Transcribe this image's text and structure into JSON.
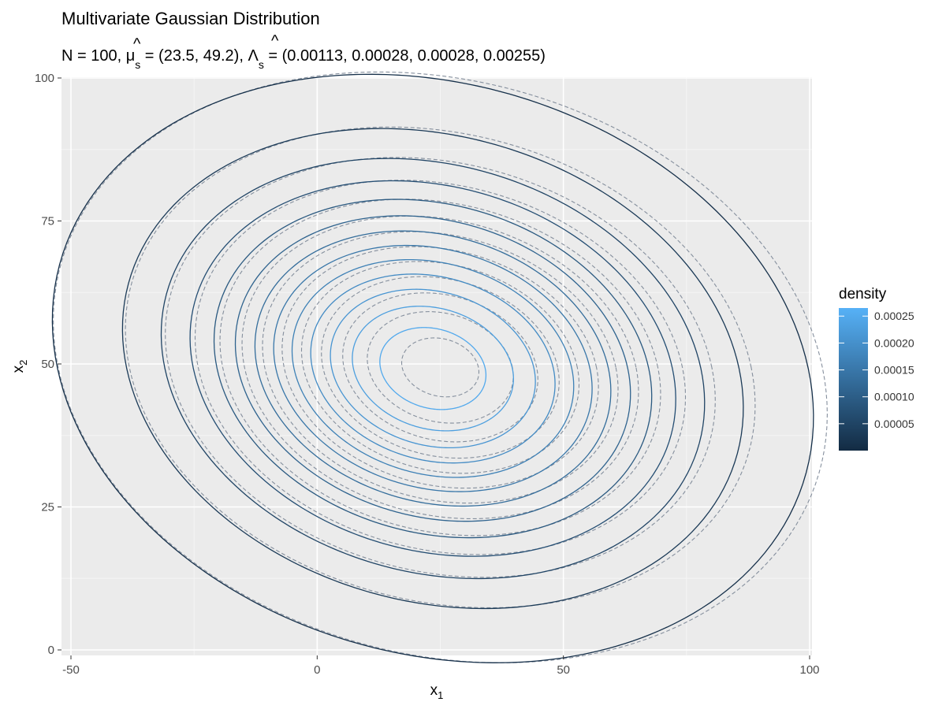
{
  "chart_data": {
    "type": "contour",
    "title": "Multivariate Gaussian Distribution",
    "subtitle": {
      "prefix": "N = 100, ",
      "mu_symbol": "μ",
      "mu_hat": "^",
      "mu_sub": "s",
      "mu_value": " = (23.5, 49.2), ",
      "lambda_symbol": "Λ",
      "lambda_hat": "^",
      "lambda_sub": "s",
      "lambda_value": " = (0.00113, 0.00028, 0.00028, 0.00255)"
    },
    "xlabel": {
      "base": "x",
      "sub": "1"
    },
    "ylabel": {
      "base": "x",
      "sub": "2"
    },
    "xlim": [
      -50,
      100
    ],
    "ylim": [
      0,
      100
    ],
    "x_ticks": [
      -50,
      0,
      50,
      100
    ],
    "y_ticks": [
      0,
      25,
      50,
      75,
      100
    ],
    "x_tick_labels": [
      "-50",
      "0",
      "50",
      "100"
    ],
    "y_tick_labels": [
      "0",
      "25",
      "50",
      "75",
      "100"
    ],
    "grid": true,
    "estimated_distribution": {
      "mean": [
        23.5,
        49.2
      ],
      "precision": [
        [
          0.00113,
          0.00028
        ],
        [
          0.00028,
          0.00255
        ]
      ],
      "line_style": "solid"
    },
    "reference_distribution": {
      "mean": [
        25.0,
        49.4
      ],
      "precision": [
        [
          0.00108,
          0.00026
        ],
        [
          0.00026,
          0.0025
        ]
      ],
      "line_style": "dashed",
      "line_color": "#7f8a99"
    },
    "contour_levels": [
      1e-05,
      3e-05,
      5e-05,
      7e-05,
      9e-05,
      0.00011,
      0.00013,
      0.00015,
      0.00017,
      0.00019,
      0.00021,
      0.00023,
      0.00025
    ],
    "legend": {
      "title": "density",
      "placement": "right",
      "range": [
        0.0,
        0.000265
      ],
      "breaks": [
        5e-05,
        0.0001,
        0.00015,
        0.0002,
        0.00025
      ],
      "labels": [
        "0.00005",
        "0.00010",
        "0.00015",
        "0.00020",
        "0.00025"
      ],
      "color_low": "#132b43",
      "color_high": "#56b1f7"
    },
    "colors": {
      "panel_background": "#ebebeb",
      "grid_major": "#ffffff",
      "grid_minor": "#f5f5f5",
      "tick": "#333333"
    }
  }
}
